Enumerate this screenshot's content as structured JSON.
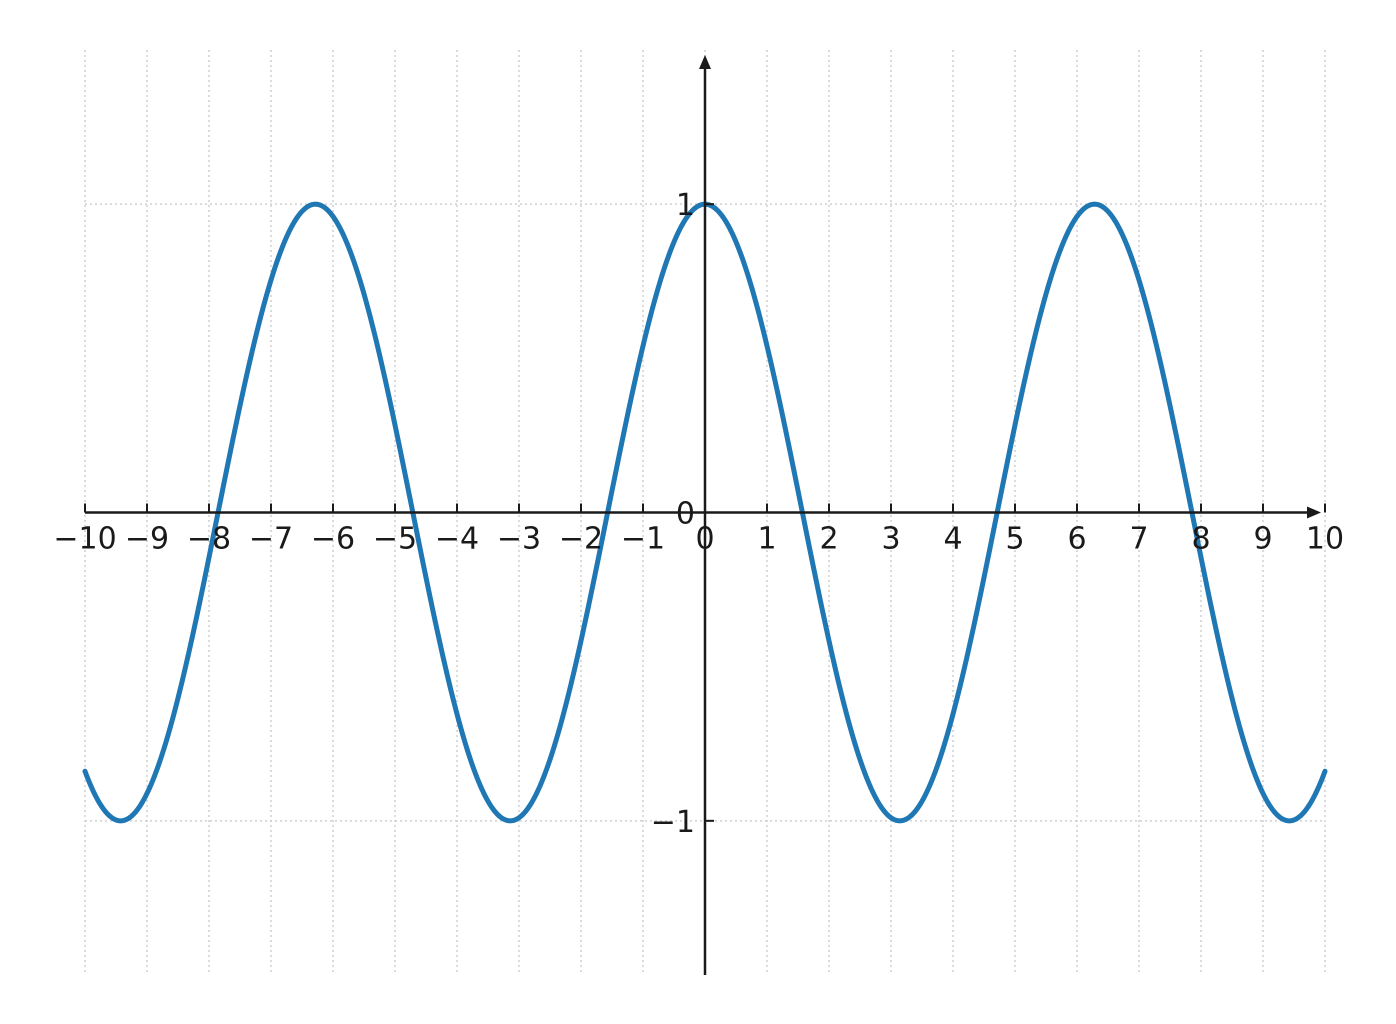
{
  "chart_data": {
    "type": "line",
    "title": "",
    "xlabel": "",
    "ylabel": "",
    "xlim": [
      -10,
      10
    ],
    "ylim": [
      -1.5,
      1.5
    ],
    "grid": true,
    "axes_style": "centered at origin with arrowheads",
    "x_ticks": [
      -10,
      -9,
      -8,
      -7,
      -6,
      -5,
      -4,
      -3,
      -2,
      -1,
      0,
      1,
      2,
      3,
      4,
      5,
      6,
      7,
      8,
      9,
      10
    ],
    "x_tick_labels": [
      "−10",
      "−9",
      "−8",
      "−7",
      "−6",
      "−5",
      "−4",
      "−3",
      "−2",
      "−1",
      "0",
      "1",
      "2",
      "3",
      "4",
      "5",
      "6",
      "7",
      "8",
      "9",
      "10"
    ],
    "y_ticks": [
      -1,
      0,
      1
    ],
    "y_tick_labels": [
      "−1",
      "0",
      "1"
    ],
    "series": [
      {
        "color": "#1f77b4",
        "function": "cos(x)",
        "x": [
          -10,
          -9.5,
          -9,
          -8.5,
          -8,
          -7.5,
          -7,
          -6.5,
          -6,
          -5.5,
          -5,
          -4.5,
          -4,
          -3.5,
          -3,
          -2.5,
          -2,
          -1.5,
          -1,
          -0.5,
          0,
          0.5,
          1,
          1.5,
          2,
          2.5,
          3,
          3.5,
          4,
          4.5,
          5,
          5.5,
          6,
          6.5,
          7,
          7.5,
          8,
          8.5,
          9,
          9.5,
          10
        ],
        "y": [
          -0.839,
          -0.997,
          -0.911,
          -0.602,
          -0.146,
          0.347,
          0.754,
          0.977,
          0.96,
          0.709,
          0.284,
          -0.211,
          -0.654,
          -0.936,
          -0.99,
          -0.801,
          -0.416,
          0.071,
          0.54,
          0.878,
          1.0,
          0.878,
          0.54,
          0.071,
          -0.416,
          -0.801,
          -0.99,
          -0.936,
          -0.654,
          -0.211,
          0.284,
          0.709,
          0.96,
          0.977,
          0.754,
          0.347,
          -0.146,
          -0.602,
          -0.911,
          -0.997,
          -0.839
        ]
      }
    ]
  }
}
